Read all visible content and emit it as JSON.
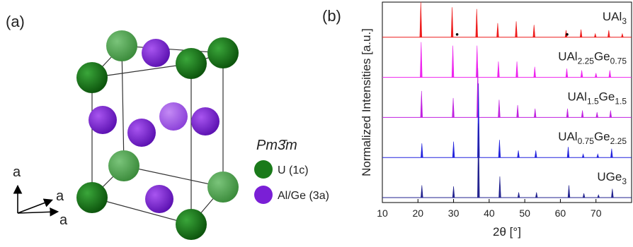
{
  "panel_a": {
    "label": "(a)",
    "space_group": "Pm3̄m",
    "legend": [
      {
        "text": "U (1c)",
        "color": "#1a7a1a"
      },
      {
        "text": "Al/Ge (3a)",
        "color": "#7a1fd6"
      }
    ],
    "axes": [
      "a",
      "a",
      "a"
    ]
  },
  "chart_data": {
    "type": "stick",
    "panel_label": "(b)",
    "x_label": "2θ [°]",
    "y_label": "Normalized Intensities [a.u.]",
    "xlim": [
      10,
      80
    ],
    "xticks": [
      10,
      20,
      30,
      40,
      50,
      60,
      70
    ],
    "marker_x": [
      31.0,
      61.9
    ],
    "series": [
      {
        "name": "UAl3",
        "color": "#ee1c1c",
        "x": [
          20.8,
          29.6,
          36.5,
          42.4,
          47.6,
          52.6,
          61.6,
          65.8,
          69.8,
          73.6,
          77.4
        ],
        "values": [
          1.0,
          0.85,
          0.8,
          0.4,
          0.45,
          0.35,
          0.2,
          0.22,
          0.1,
          0.2,
          0.1
        ]
      },
      {
        "name": "UAl2.25Ge0.75",
        "color": "#ee22ee",
        "x": [
          20.9,
          29.8,
          36.6,
          42.6,
          47.8,
          52.8,
          61.8,
          66.0,
          70.0,
          73.9
        ],
        "values": [
          1.0,
          0.9,
          0.9,
          0.45,
          0.45,
          0.3,
          0.25,
          0.2,
          0.12,
          0.2
        ]
      },
      {
        "name": "UAl1.5Ge1.5",
        "color": "#c020e0",
        "x": [
          21.0,
          29.9,
          36.8,
          42.8,
          48.0,
          52.9,
          62.0,
          66.2,
          70.3,
          74.1
        ],
        "values": [
          0.75,
          0.55,
          1.4,
          0.5,
          0.35,
          0.25,
          0.25,
          0.2,
          0.15,
          0.2
        ]
      },
      {
        "name": "UAl0.75Ge2.25",
        "color": "#2222dd",
        "x": [
          21.1,
          30.0,
          37.0,
          42.9,
          48.2,
          53.1,
          62.2,
          66.4,
          70.5,
          74.4
        ],
        "values": [
          0.4,
          0.45,
          2.1,
          0.5,
          0.2,
          0.2,
          0.3,
          0.1,
          0.1,
          0.25
        ]
      },
      {
        "name": "UGe3",
        "color": "#22228f",
        "x": [
          21.1,
          30.0,
          37.0,
          43.0,
          48.3,
          53.3,
          62.4,
          66.6,
          70.7,
          74.6
        ],
        "values": [
          0.35,
          0.32,
          2.1,
          0.6,
          0.15,
          0.15,
          0.35,
          0.12,
          0.08,
          0.25
        ]
      }
    ]
  }
}
